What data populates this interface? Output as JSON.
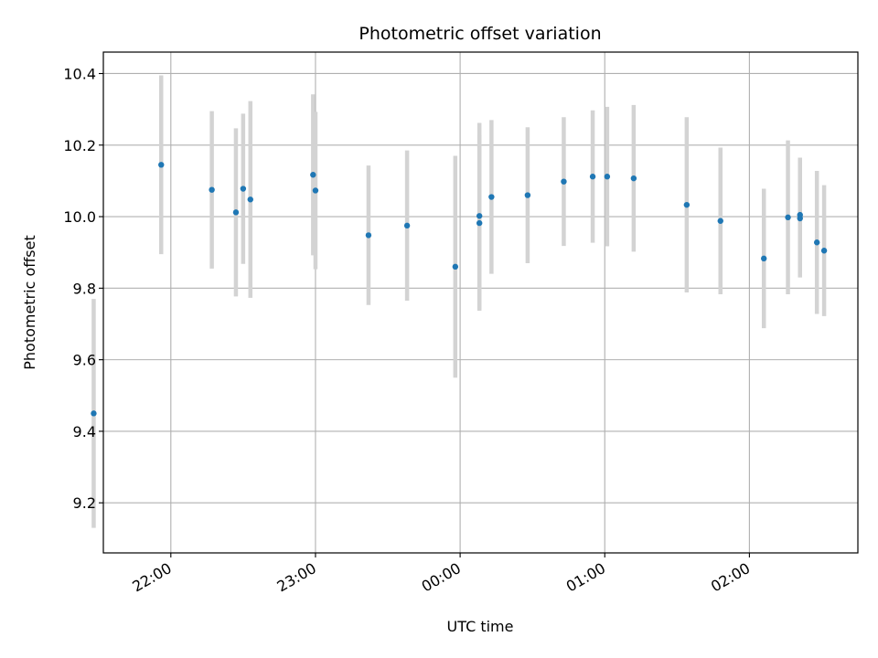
{
  "chart_data": {
    "type": "scatter",
    "title": "Photometric offset variation",
    "xlabel": "UTC time",
    "ylabel": "Photometric offset",
    "x_tick_labels": [
      "22:00",
      "23:00",
      "00:00",
      "01:00",
      "02:00"
    ],
    "y_tick_labels": [
      "9.2",
      "9.4",
      "9.6",
      "9.8",
      "10.0",
      "10.2",
      "10.4"
    ],
    "grid": true,
    "points": [
      {
        "x": "21:28",
        "y": 9.45,
        "err": 0.32
      },
      {
        "x": "21:56",
        "y": 10.145,
        "err": 0.25
      },
      {
        "x": "22:17",
        "y": 10.075,
        "err": 0.22
      },
      {
        "x": "22:27",
        "y": 10.012,
        "err": 0.235
      },
      {
        "x": "22:30",
        "y": 10.078,
        "err": 0.21
      },
      {
        "x": "22:33",
        "y": 10.048,
        "err": 0.275
      },
      {
        "x": "22:59",
        "y": 10.117,
        "err": 0.225
      },
      {
        "x": "23:00",
        "y": 10.073,
        "err": 0.22
      },
      {
        "x": "23:22",
        "y": 9.948,
        "err": 0.195
      },
      {
        "x": "23:38",
        "y": 9.975,
        "err": 0.21
      },
      {
        "x": "23:58",
        "y": 9.86,
        "err": 0.31
      },
      {
        "x": "00:08",
        "y": 9.982,
        "err": 0.245
      },
      {
        "x": "00:08",
        "y": 10.002,
        "err": 0.26
      },
      {
        "x": "00:13",
        "y": 10.055,
        "err": 0.215
      },
      {
        "x": "00:28",
        "y": 10.06,
        "err": 0.19
      },
      {
        "x": "00:43",
        "y": 10.098,
        "err": 0.18
      },
      {
        "x": "00:55",
        "y": 10.112,
        "err": 0.185
      },
      {
        "x": "01:01",
        "y": 10.112,
        "err": 0.195
      },
      {
        "x": "01:12",
        "y": 10.107,
        "err": 0.205
      },
      {
        "x": "01:34",
        "y": 10.033,
        "err": 0.245
      },
      {
        "x": "01:48",
        "y": 9.988,
        "err": 0.205
      },
      {
        "x": "02:06",
        "y": 9.883,
        "err": 0.195
      },
      {
        "x": "02:16",
        "y": 9.998,
        "err": 0.215
      },
      {
        "x": "02:21",
        "y": 10.005,
        "err": 0.16
      },
      {
        "x": "02:21",
        "y": 9.995,
        "err": 0.165
      },
      {
        "x": "02:28",
        "y": 9.928,
        "err": 0.2
      },
      {
        "x": "02:31",
        "y": 9.905,
        "err": 0.183
      }
    ],
    "x_range": [
      "21:32",
      "02:45"
    ],
    "ylim": [
      9.06,
      10.46
    ],
    "colors": {
      "marker": "#1f77b4",
      "errorbar": "#d3d3d3",
      "grid": "#b0b0b0",
      "axes": "#000000"
    }
  }
}
